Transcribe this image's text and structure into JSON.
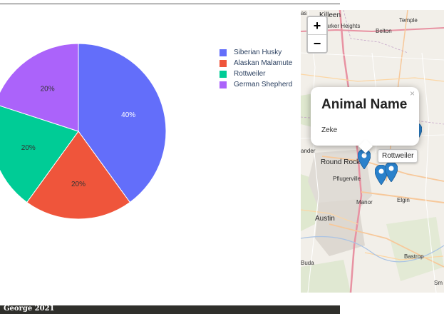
{
  "chart_data": {
    "type": "pie",
    "labels": [
      "Siberian Husky",
      "Alaskan Malamute",
      "Rottweiler",
      "German Shepherd"
    ],
    "values": [
      40,
      20,
      20,
      20
    ],
    "text_labels": [
      "40%",
      "20%",
      "20%",
      "20%"
    ],
    "colors": [
      "#636efa",
      "#ef553b",
      "#00cc96",
      "#ab63fa"
    ],
    "legend_position": "right"
  },
  "map": {
    "zoom_in_label": "+",
    "zoom_out_label": "−",
    "place_labels": {
      "killeen": "Killeen",
      "harker_heights": "Harker Heights",
      "belton": "Belton",
      "temple": "Temple",
      "round_rock": "Round Rock",
      "pflugerville": "Pflugerville",
      "manor": "Manor",
      "elgin": "Elgin",
      "austin": "Austin",
      "bastrop": "Bastrop",
      "buda": "Buda",
      "smithville": "Sm",
      "leander": "ander",
      "lampasas": "as"
    },
    "popup": {
      "title": "Animal Name",
      "body": "Zeke",
      "close": "×"
    },
    "tooltip": "Rottweiler"
  },
  "footer": {
    "text": "George 2021"
  }
}
